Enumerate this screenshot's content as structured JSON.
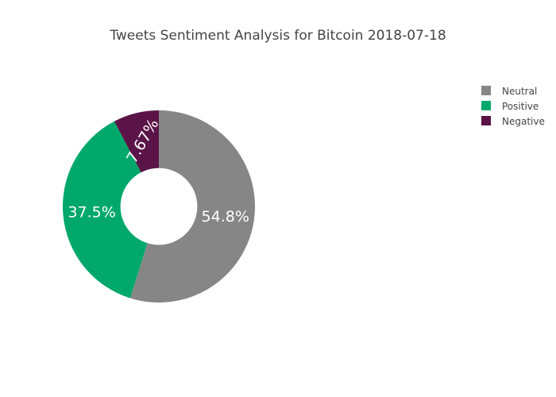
{
  "chart_data": {
    "type": "pie",
    "title": "Tweets Sentiment Analysis for Bitcoin 2018-07-18",
    "hole": 0.4,
    "legend_position": "top-right",
    "slices": [
      {
        "label": "Neutral",
        "value": 54.8,
        "percent_text": "54.8%",
        "color": "#868686"
      },
      {
        "label": "Positive",
        "value": 37.5,
        "percent_text": "37.5%",
        "color": "#00a86b"
      },
      {
        "label": "Negative",
        "value": 7.67,
        "percent_text": "7.67%",
        "color": "#5b1447"
      }
    ]
  }
}
